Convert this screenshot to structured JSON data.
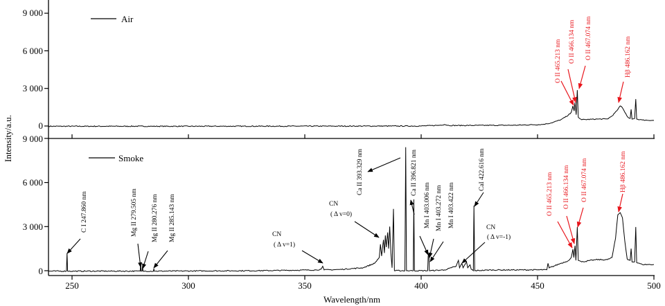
{
  "chart_data": [
    {
      "type": "line",
      "panel": "top",
      "legend": "Air",
      "legend_placement": "top-left",
      "xlim": [
        240,
        500
      ],
      "ylim": [
        0,
        9000
      ],
      "yticks": [
        "0",
        "3 000",
        "6 000",
        "9 000"
      ],
      "ytick_values": [
        0,
        3000,
        6000,
        9000
      ],
      "xtick_values": [
        250,
        300,
        350,
        400,
        450,
        500
      ],
      "series": [
        {
          "name": "Air",
          "color": "#000000",
          "points": [
            [
              240,
              -20
            ],
            [
              300,
              -20
            ],
            [
              360,
              -10
            ],
            [
              400,
              0
            ],
            [
              408,
              60
            ],
            [
              410,
              120
            ],
            [
              412,
              40
            ],
            [
              440,
              60
            ],
            [
              452,
              120
            ],
            [
              456,
              250
            ],
            [
              460,
              500
            ],
            [
              463,
              820
            ],
            [
              464.5,
              1100
            ],
            [
              465.2,
              1600
            ],
            [
              465.7,
              1200
            ],
            [
              466.1,
              1880
            ],
            [
              466.6,
              900
            ],
            [
              467.07,
              2870
            ],
            [
              467.5,
              700
            ],
            [
              469,
              500
            ],
            [
              475,
              550
            ],
            [
              480,
              560
            ],
            [
              482,
              800
            ],
            [
              484,
              1200
            ],
            [
              485.5,
              1600
            ],
            [
              486.5,
              1450
            ],
            [
              487.5,
              1100
            ],
            [
              488.8,
              700
            ],
            [
              489.8,
              600
            ],
            [
              490.2,
              1330
            ],
            [
              490.6,
              550
            ],
            [
              491.7,
              600
            ],
            [
              492.2,
              2150
            ],
            [
              492.6,
              550
            ],
            [
              495,
              480
            ],
            [
              500,
              440
            ]
          ]
        }
      ],
      "annotations": [
        {
          "text": "O II 465.213 nm",
          "wavelength": 465.213,
          "color": "#e8141b"
        },
        {
          "text": "O II 466.134 nm",
          "wavelength": 466.134,
          "color": "#e8141b"
        },
        {
          "text": "O II 467.074 nm",
          "wavelength": 467.074,
          "color": "#e8141b"
        },
        {
          "text": "Hβ 486.162 nm",
          "wavelength": 486.162,
          "color": "#e8141b"
        }
      ]
    },
    {
      "type": "line",
      "panel": "bottom",
      "legend": "Smoke",
      "legend_placement": "top-left",
      "xlim": [
        240,
        500
      ],
      "ylim": [
        0,
        9000
      ],
      "yticks": [
        "0",
        "3 000",
        "6 000",
        "9 000"
      ],
      "ytick_values": [
        0,
        3000,
        6000,
        9000
      ],
      "xticks": [
        "250",
        "300",
        "350",
        "400",
        "450",
        "500"
      ],
      "xtick_values": [
        250,
        300,
        350,
        400,
        450,
        500
      ],
      "xlabel": "Wavelength/nm",
      "ylabel": "Intensity/a.u.",
      "series": [
        {
          "name": "Smoke",
          "color": "#000000",
          "points": [
            [
              240,
              -30
            ],
            [
              247.6,
              -30
            ],
            [
              247.86,
              1200
            ],
            [
              248.1,
              -30
            ],
            [
              279.3,
              -30
            ],
            [
              279.5,
              500
            ],
            [
              279.7,
              -30
            ],
            [
              280.1,
              -30
            ],
            [
              280.28,
              300
            ],
            [
              280.5,
              -30
            ],
            [
              285,
              -30
            ],
            [
              285.14,
              150
            ],
            [
              285.3,
              -30
            ],
            [
              330,
              0
            ],
            [
              355,
              50
            ],
            [
              357,
              100
            ],
            [
              357.7,
              300
            ],
            [
              358.3,
              50
            ],
            [
              365,
              80
            ],
            [
              375,
              200
            ],
            [
              380,
              500
            ],
            [
              382,
              900
            ],
            [
              382.5,
              1800
            ],
            [
              383,
              1000
            ],
            [
              383.8,
              2100
            ],
            [
              384.2,
              1200
            ],
            [
              384.6,
              2400
            ],
            [
              385,
              1600
            ],
            [
              385.6,
              2600
            ],
            [
              386,
              1500
            ],
            [
              386.5,
              3000
            ],
            [
              387,
              1200
            ],
            [
              387.5,
              200
            ],
            [
              388.1,
              4200
            ],
            [
              388.5,
              0
            ],
            [
              393,
              0
            ],
            [
              393.37,
              8400
            ],
            [
              393.7,
              0
            ],
            [
              396.6,
              0
            ],
            [
              396.85,
              4850
            ],
            [
              397.1,
              0
            ],
            [
              402.8,
              0
            ],
            [
              403.0,
              1000
            ],
            [
              403.3,
              1200
            ],
            [
              403.5,
              0
            ],
            [
              410,
              50
            ],
            [
              413,
              200
            ],
            [
              415,
              300
            ],
            [
              416,
              700
            ],
            [
              416.5,
              200
            ],
            [
              417.5,
              500
            ],
            [
              418,
              200
            ],
            [
              419.5,
              600
            ],
            [
              420,
              200
            ],
            [
              421,
              400
            ],
            [
              421.5,
              100
            ],
            [
              422.4,
              0
            ],
            [
              422.67,
              4430
            ],
            [
              423,
              0
            ],
            [
              430,
              50
            ],
            [
              440,
              50
            ],
            [
              450,
              60
            ],
            [
              454,
              60
            ],
            [
              454.5,
              500
            ],
            [
              455,
              190
            ],
            [
              460,
              500
            ],
            [
              463,
              660
            ],
            [
              464.5,
              900
            ],
            [
              465.2,
              1460
            ],
            [
              465.6,
              900
            ],
            [
              466.1,
              1700
            ],
            [
              466.5,
              700
            ],
            [
              467.07,
              2970
            ],
            [
              467.5,
              700
            ],
            [
              469,
              600
            ],
            [
              475,
              750
            ],
            [
              480,
              750
            ],
            [
              482,
              900
            ],
            [
              483.5,
              2200
            ],
            [
              484.5,
              3800
            ],
            [
              485.5,
              3950
            ],
            [
              486.5,
              3600
            ],
            [
              487.5,
              2000
            ],
            [
              488.5,
              800
            ],
            [
              489.8,
              700
            ],
            [
              490.2,
              1500
            ],
            [
              490.6,
              600
            ],
            [
              491.7,
              600
            ],
            [
              492.2,
              2970
            ],
            [
              492.6,
              550
            ],
            [
              495,
              420
            ],
            [
              500,
              420
            ]
          ]
        }
      ],
      "annotations": [
        {
          "text": "C I 247.860 nm",
          "wavelength": 247.86,
          "color": "#000000"
        },
        {
          "text": "Mg II 279.505 nm",
          "wavelength": 279.505,
          "color": "#000000"
        },
        {
          "text": "Mg II 280.276 nm",
          "wavelength": 280.276,
          "color": "#000000"
        },
        {
          "text": "Mg II 285.143 nm",
          "wavelength": 285.143,
          "color": "#000000"
        },
        {
          "text": "CN",
          "sub": "( Δ v=1)",
          "color": "#000000"
        },
        {
          "text": "CN",
          "sub": "( Δ v=0)",
          "color": "#000000"
        },
        {
          "text": "Ca II 393.329 nm",
          "wavelength": 393.329,
          "color": "#000000"
        },
        {
          "text": "Ca II 396.821 nm",
          "wavelength": 396.821,
          "color": "#000000"
        },
        {
          "text": "Mn I 403.006 nm",
          "wavelength": 403.006,
          "color": "#000000"
        },
        {
          "text": "Mn I 403.272 nm",
          "wavelength": 403.272,
          "color": "#000000"
        },
        {
          "text": "Mn I 403.422 nm",
          "wavelength": 403.422,
          "color": "#000000"
        },
        {
          "text": "CaI 422.616 nm",
          "wavelength": 422.616,
          "color": "#000000"
        },
        {
          "text": "CN",
          "sub": "( Δ v=-1)",
          "color": "#000000"
        },
        {
          "text": "O II 465.213 nm",
          "wavelength": 465.213,
          "color": "#e8141b"
        },
        {
          "text": "O II 466.134 nm",
          "wavelength": 466.134,
          "color": "#e8141b"
        },
        {
          "text": "O II 467.074 nm",
          "wavelength": 467.074,
          "color": "#e8141b"
        },
        {
          "text": "Hβ 486.162 nm",
          "wavelength": 486.162,
          "color": "#e8141b"
        }
      ]
    }
  ]
}
